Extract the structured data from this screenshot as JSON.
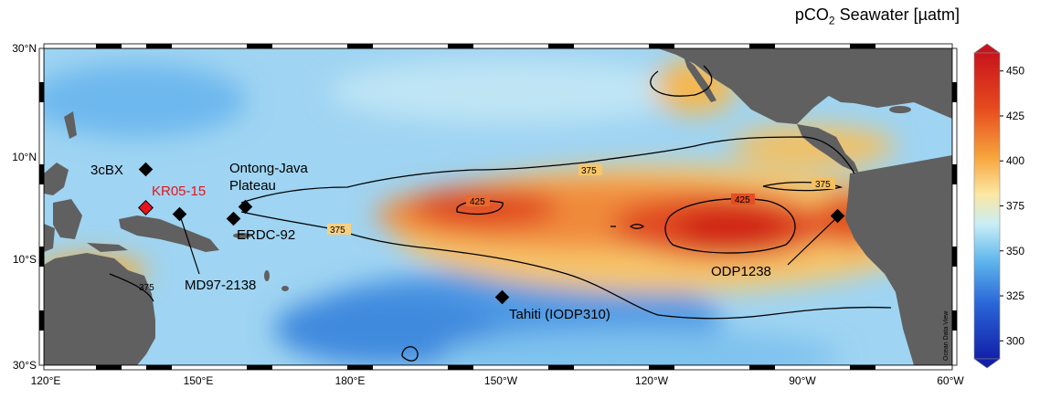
{
  "colorbar": {
    "title_prefix": "pCO",
    "title_sub": "2",
    "title_suffix": " Seawater [µatm]",
    "ticks": [
      450,
      425,
      400,
      375,
      350,
      325,
      300
    ]
  },
  "axes": {
    "lat_labels": [
      "30°N",
      "10°N",
      "10°S",
      "30°S"
    ],
    "lon_labels": [
      "120°E",
      "150°E",
      "180°E",
      "150°W",
      "120°W",
      "90°W",
      "60°W"
    ]
  },
  "credit": "Ocean Data View",
  "contours": {
    "c375": "375",
    "c425": "425"
  },
  "sites": [
    {
      "name": "3cBX",
      "color": "#000000"
    },
    {
      "name": "KR05-15",
      "color": "#e8141a"
    },
    {
      "name": "Ontong-Java",
      "name2": "Plateau",
      "color": "#000000"
    },
    {
      "name": "ERDC-92",
      "color": "#000000"
    },
    {
      "name": "MD97-2138",
      "color": "#000000"
    },
    {
      "name": "Tahiti (IODP310)",
      "color": "#000000"
    },
    {
      "name": "ODP1238",
      "color": "#000000"
    }
  ],
  "colors": {
    "land": "#606060",
    "highlight": "#e8141a"
  }
}
